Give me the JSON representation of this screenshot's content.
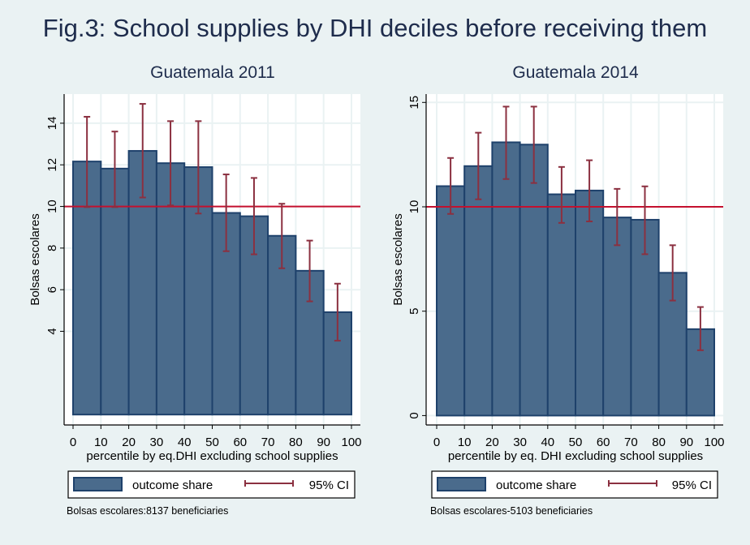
{
  "figure": {
    "title": "Fig.3: School supplies by DHI deciles before receiving them"
  },
  "colors": {
    "background": "#eaf2f3",
    "bar_fill": "#4a6b8c",
    "bar_border": "#1e416b",
    "ci": "#8b3040",
    "reference_line": "#c4102e",
    "grid": "#eaf2f3",
    "title": "#1e2c4c"
  },
  "chart_data": [
    {
      "type": "bar",
      "title": "Guatemala 2011",
      "xlabel": "percentile by eq.DHI excluding school supplies",
      "ylabel": "Bolsas escolares",
      "x_ticks": [
        0,
        10,
        20,
        30,
        40,
        50,
        60,
        70,
        80,
        90,
        100
      ],
      "x_tick_labels": [
        "0",
        "10",
        "20",
        "30",
        "40",
        "50",
        "60",
        "70",
        "80",
        "90",
        "100"
      ],
      "xlim": [
        -3.5,
        103
      ],
      "y_ticks": [
        4,
        6,
        8,
        10,
        12,
        14
      ],
      "y_tick_labels": [
        "4",
        "6",
        "8",
        "10",
        "12",
        "14"
      ],
      "ylim": [
        -0.5,
        15.4
      ],
      "grid": true,
      "reference_line": 10,
      "bins": [
        [
          0,
          10
        ],
        [
          10,
          20
        ],
        [
          20,
          30
        ],
        [
          30,
          40
        ],
        [
          40,
          50
        ],
        [
          50,
          60
        ],
        [
          60,
          70
        ],
        [
          70,
          80
        ],
        [
          80,
          90
        ],
        [
          90,
          100
        ]
      ],
      "series": [
        {
          "name": "outcome share",
          "values": [
            12.16,
            11.82,
            12.67,
            12.08,
            11.89,
            9.69,
            9.53,
            8.59,
            6.91,
            4.92
          ]
        },
        {
          "name": "95% CI",
          "lower": [
            9.97,
            9.97,
            10.43,
            10.05,
            9.66,
            7.85,
            7.7,
            7.03,
            5.44,
            3.55
          ],
          "upper": [
            14.31,
            13.6,
            14.93,
            14.1,
            14.1,
            11.54,
            11.37,
            10.13,
            8.36,
            6.29
          ]
        }
      ],
      "legend": {
        "placement": "bottom",
        "entries": [
          "outcome share",
          "95% CI"
        ]
      },
      "note": "Bolsas escolares:8137 beneficiaries"
    },
    {
      "type": "bar",
      "title": "Guatemala 2014",
      "xlabel": "percentile by eq. DHI excluding school supplies",
      "ylabel": "Bolsas escolares",
      "x_ticks": [
        0,
        10,
        20,
        30,
        40,
        50,
        60,
        70,
        80,
        90,
        100
      ],
      "x_tick_labels": [
        "0",
        "10",
        "20",
        "30",
        "40",
        "50",
        "60",
        "70",
        "80",
        "90",
        "100"
      ],
      "xlim": [
        -3.5,
        103
      ],
      "y_ticks": [
        0,
        5,
        10,
        15
      ],
      "y_tick_labels": [
        "0",
        "5",
        "10",
        "15"
      ],
      "ylim": [
        -0.45,
        15.4
      ],
      "grid": true,
      "reference_line": 10,
      "bins": [
        [
          0,
          10
        ],
        [
          10,
          20
        ],
        [
          20,
          30
        ],
        [
          30,
          40
        ],
        [
          40,
          50
        ],
        [
          50,
          60
        ],
        [
          60,
          70
        ],
        [
          70,
          80
        ],
        [
          80,
          90
        ],
        [
          90,
          100
        ]
      ],
      "series": [
        {
          "name": "outcome share",
          "values": [
            10.99,
            11.95,
            13.09,
            12.98,
            10.6,
            10.78,
            9.49,
            9.38,
            6.84,
            4.14
          ]
        },
        {
          "name": "95% CI",
          "lower": [
            9.66,
            10.36,
            11.33,
            11.14,
            9.23,
            9.3,
            8.16,
            7.73,
            5.51,
            3.13
          ],
          "upper": [
            12.34,
            13.55,
            14.8,
            14.8,
            11.91,
            12.23,
            10.86,
            10.98,
            8.16,
            5.2
          ]
        }
      ],
      "legend": {
        "placement": "bottom",
        "entries": [
          "outcome share",
          "95% CI"
        ]
      },
      "note": "Bolsas escolares-5103 beneficiaries"
    }
  ]
}
